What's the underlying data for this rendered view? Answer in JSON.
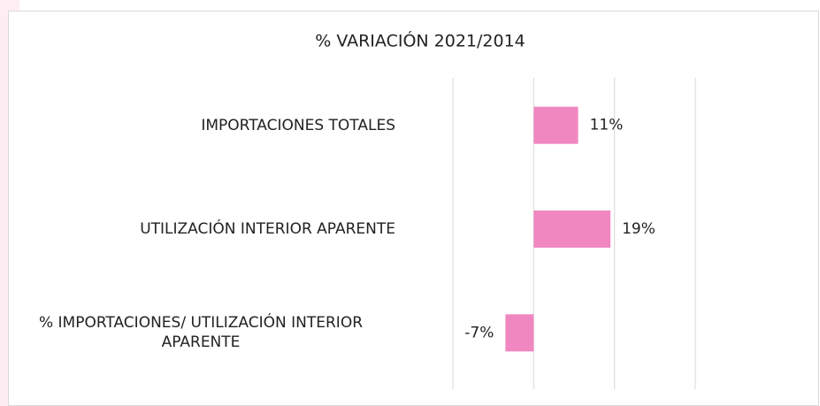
{
  "chart_data": {
    "type": "hbar",
    "title": "% VARIACIÓN 2021/2014",
    "categories": [
      "IMPORTACIONES TOTALES",
      "UTILIZACIÓN INTERIOR APARENTE",
      "% IMPORTACIONES/ UTILIZACIÓN INTERIOR APARENTE"
    ],
    "values": [
      11,
      19,
      -7
    ],
    "value_labels": [
      "11%",
      "19%",
      "-7%"
    ],
    "color": "#f087c0",
    "xlim": [
      -20,
      40
    ],
    "xticks": [
      -20,
      0,
      20,
      40
    ],
    "grid": true
  }
}
